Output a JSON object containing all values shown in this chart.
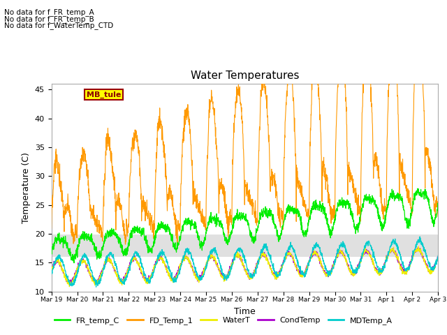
{
  "title": "Water Temperatures",
  "xlabel": "Time",
  "ylabel": "Temperature (C)",
  "ylim": [
    10,
    46
  ],
  "xlim": [
    0,
    15.0
  ],
  "background_color": "#ffffff",
  "shaded_band": [
    16,
    20
  ],
  "shaded_color": "#e0e0e0",
  "no_data_texts": [
    "No data for f_FR_temp_A",
    "No data for f_FR_temp_B",
    "No data for f_WaterTemp_CTD"
  ],
  "mb_tule_label": "MB_tule",
  "xtick_labels": [
    "Mar 19",
    "Mar 20",
    "Mar 21",
    "Mar 22",
    "Mar 23",
    "Mar 24",
    "Mar 25",
    "Mar 26",
    "Mar 27",
    "Mar 28",
    "Mar 29",
    "Mar 30",
    "Mar 31",
    "Apr 1",
    "Apr 2",
    "Apr 3"
  ],
  "xtick_positions": [
    0,
    1,
    2,
    3,
    4,
    5,
    6,
    7,
    8,
    9,
    10,
    11,
    12,
    13,
    14,
    15
  ],
  "legend_entries": [
    {
      "label": "FR_temp_C",
      "color": "#00ee00"
    },
    {
      "label": "FD_Temp_1",
      "color": "#ff9900"
    },
    {
      "label": "WaterT",
      "color": "#eeee00"
    },
    {
      "label": "CondTemp",
      "color": "#aa00cc"
    },
    {
      "label": "MDTemp_A",
      "color": "#00cccc"
    }
  ]
}
